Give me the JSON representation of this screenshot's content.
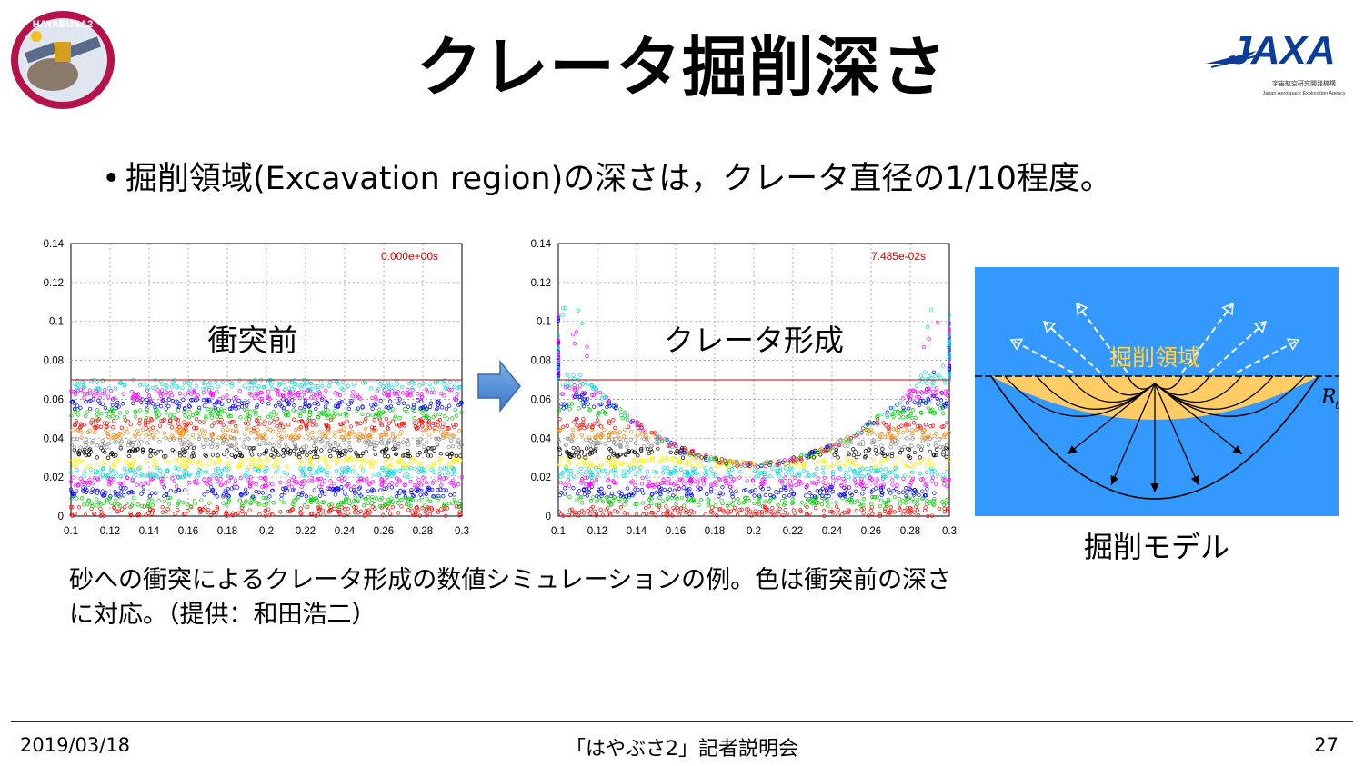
{
  "title": "クレータ掘削深さ",
  "logos": {
    "left": {
      "text": "HAYABUSA2",
      "icon": "hayabusa2-mission-emblem"
    },
    "right": {
      "text": "JAXA",
      "subtitle": "宇宙航空研究開発機構",
      "subtitle2": "Japan Aerospace Exploration Agency",
      "icon": "jaxa-logo"
    }
  },
  "bullet": {
    "marker": "•",
    "text": "掘削領域(Excavation region)の深さは，クレータ直径の1/10程度。"
  },
  "plots": {
    "before": {
      "label": "衝突前",
      "timestamp": "0.000e+00s"
    },
    "after": {
      "label": "クレータ形成",
      "timestamp": "7.485e-02s"
    },
    "y_ticks": [
      "0.14",
      "0.12",
      "0.1",
      "0.08",
      "0.06",
      "0.04",
      "0.02",
      "0"
    ],
    "x_ticks": [
      "0.1",
      "0.12",
      "0.14",
      "0.16",
      "0.18",
      "0.2",
      "0.22",
      "0.24",
      "0.26",
      "0.28",
      "0.3"
    ]
  },
  "chart_data": [
    {
      "type": "scatter",
      "title": "衝突前",
      "annotation": "0.000e+00s",
      "xlim": [
        0.1,
        0.3
      ],
      "ylim": [
        0,
        0.14
      ],
      "grid": true,
      "surface_line_y": 0.07,
      "layer_colors": [
        "#ff0000",
        "#00cc00",
        "#0000ff",
        "#ff00ff",
        "#00dddd",
        "#ffee00",
        "#000000",
        "#888888",
        "#ff8000",
        "#ff0000",
        "#00cc00",
        "#0000ff",
        "#ff00ff",
        "#00dddd"
      ]
    },
    {
      "type": "scatter",
      "title": "クレータ形成",
      "annotation": "7.485e-02s",
      "xlim": [
        0.1,
        0.3
      ],
      "ylim": [
        0,
        0.14
      ],
      "grid": true,
      "surface_line_y": 0.07,
      "crater_bottom_depth": 0.028
    }
  ],
  "diagram": {
    "label": "掘削領域",
    "rt_label": "R",
    "rt_sub": "t",
    "caption": "掘削モデル",
    "bg_color": "#3399ff",
    "zone_color": "#ffcc66",
    "label_color": "#ffd23f"
  },
  "caption": "砂への衝突によるクレータ形成の数値シミュレーションの例。色は衝突前の深さに対応。（提供：和田浩二）",
  "footer": {
    "date": "2019/03/18",
    "center": "「はやぶさ2」記者説明会",
    "page": "27"
  }
}
